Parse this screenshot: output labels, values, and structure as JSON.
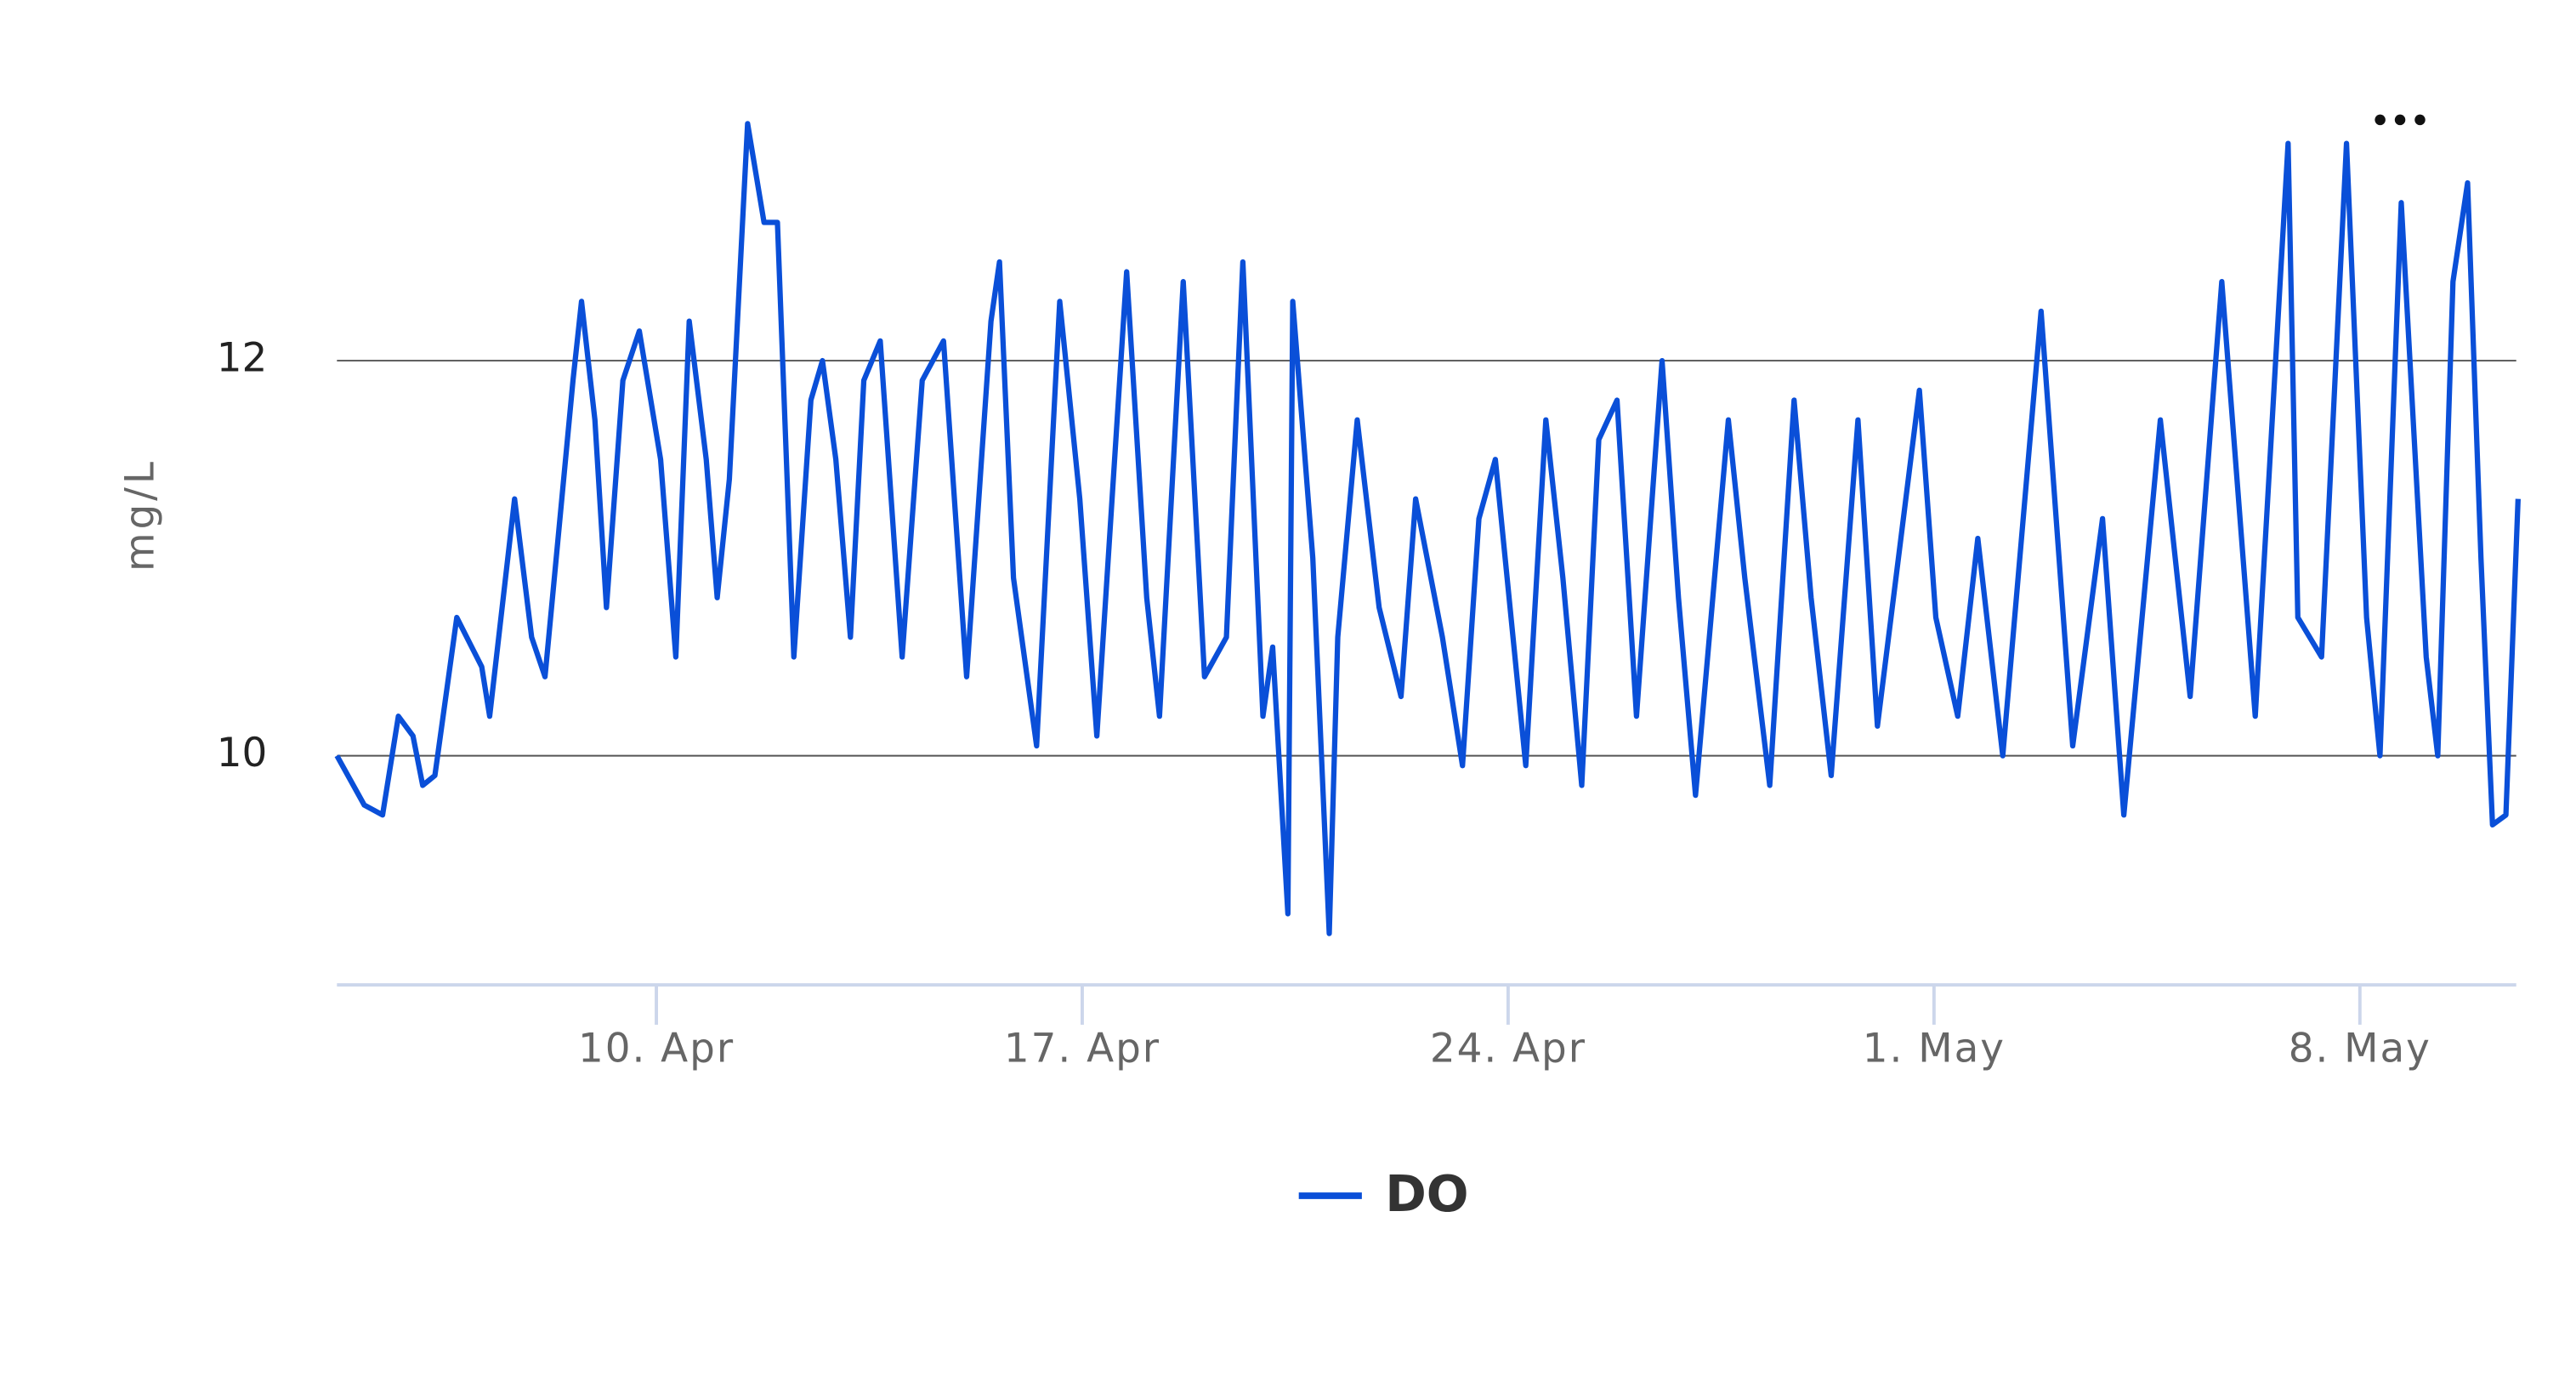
{
  "chart_data": {
    "type": "line",
    "y_axis_label": "mg/L",
    "x": [
      4.75,
      5.2,
      5.5,
      5.76,
      6.0,
      6.16,
      6.36,
      6.72,
      7.13,
      7.26,
      7.67,
      7.95,
      8.17,
      8.63,
      8.77,
      8.99,
      9.18,
      9.45,
      9.72,
      10.07,
      10.32,
      10.54,
      10.82,
      11.0,
      11.2,
      11.5,
      11.77,
      11.99,
      12.26,
      12.54,
      12.73,
      12.95,
      13.19,
      13.41,
      13.68,
      14.04,
      14.37,
      14.72,
      15.1,
      15.5,
      15.64,
      15.87,
      16.25,
      16.63,
      16.96,
      17.24,
      17.73,
      18.06,
      18.27,
      18.66,
      19.01,
      19.37,
      19.64,
      19.97,
      20.13,
      20.38,
      20.46,
      20.79,
      21.06,
      21.2,
      21.52,
      21.88,
      22.24,
      22.48,
      22.92,
      23.25,
      23.52,
      23.79,
      24.29,
      24.62,
      24.9,
      25.21,
      25.49,
      25.79,
      26.11,
      26.53,
      26.8,
      27.08,
      27.62,
      27.89,
      28.3,
      28.7,
      28.98,
      29.31,
      29.75,
      30.07,
      30.76,
      31.03,
      31.39,
      31.72,
      32.13,
      32.76,
      33.28,
      33.77,
      34.12,
      34.72,
      35.21,
      35.73,
      36.28,
      36.82,
      36.98,
      37.37,
      37.78,
      38.11,
      38.33,
      38.68,
      39.09,
      39.28,
      39.53,
      39.77,
      39.99,
      40.18,
      40.4,
      40.6
    ],
    "series": [
      {
        "name": "DO",
        "color": "#0a4fd8",
        "values": [
          10.0,
          9.75,
          9.7,
          10.2,
          10.1,
          9.85,
          9.9,
          10.7,
          10.45,
          10.2,
          11.3,
          10.6,
          10.4,
          11.9,
          12.3,
          11.7,
          10.75,
          11.9,
          12.15,
          11.5,
          10.5,
          12.2,
          11.5,
          10.8,
          11.4,
          13.2,
          12.7,
          12.7,
          10.5,
          11.8,
          12.0,
          11.5,
          10.6,
          11.9,
          12.1,
          10.5,
          11.9,
          12.1,
          10.4,
          12.2,
          12.5,
          10.9,
          10.05,
          12.3,
          11.3,
          10.1,
          12.45,
          10.8,
          10.2,
          12.4,
          10.4,
          10.6,
          12.5,
          10.2,
          10.55,
          9.2,
          12.3,
          11.0,
          9.1,
          10.6,
          11.7,
          10.75,
          10.3,
          11.3,
          10.6,
          9.95,
          11.2,
          11.5,
          9.95,
          11.7,
          10.9,
          9.85,
          11.6,
          11.8,
          10.2,
          12.0,
          10.8,
          9.8,
          11.7,
          10.9,
          9.85,
          11.8,
          10.8,
          9.9,
          11.7,
          10.15,
          11.85,
          10.7,
          10.2,
          11.1,
          10.0,
          12.25,
          10.05,
          11.2,
          9.7,
          11.7,
          10.3,
          12.4,
          10.2,
          13.1,
          10.7,
          10.5,
          13.1,
          10.7,
          10.0,
          12.8,
          10.5,
          10.0,
          12.4,
          12.9,
          11.0,
          9.65,
          9.7,
          11.3
        ]
      }
    ],
    "xlim": [
      4.75,
      40.57
    ],
    "xticks": [
      {
        "value": 10,
        "label": "10. Apr"
      },
      {
        "value": 17,
        "label": "17. Apr"
      },
      {
        "value": 24,
        "label": "24. Apr"
      },
      {
        "value": 31,
        "label": "1. May"
      },
      {
        "value": 38,
        "label": "8. May"
      }
    ],
    "ylim": [
      8.84,
      13.32
    ],
    "yticks": [
      10,
      12
    ],
    "grid": true,
    "legend": "bottom"
  }
}
